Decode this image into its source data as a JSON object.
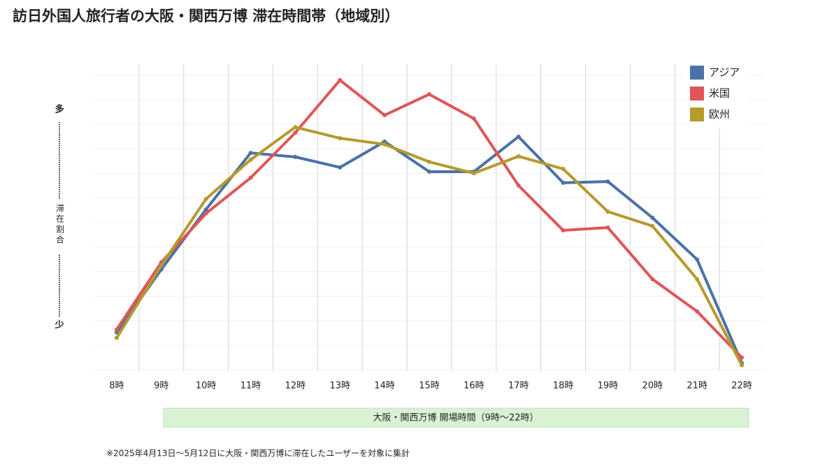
{
  "chart_data": {
    "type": "line",
    "title": "訪日外国人旅行者の大阪・関西万博 滞在時間帯（地域別）",
    "y_label": "滞在割合",
    "y_high_label": "多",
    "y_low_label": "少",
    "categories": [
      "8時",
      "9時",
      "10時",
      "11時",
      "12時",
      "13時",
      "14時",
      "15時",
      "16時",
      "17時",
      "18時",
      "19時",
      "20時",
      "21時",
      "22時"
    ],
    "ylim": [
      0,
      100
    ],
    "series": [
      {
        "name": "アジア",
        "color": "#4a72a6",
        "values": [
          12.7,
          33.2,
          52.7,
          71.1,
          69.8,
          66.4,
          74.8,
          65,
          65,
          76.4,
          61.4,
          61.8,
          50,
          36.4,
          2.7
        ]
      },
      {
        "name": "米国",
        "color": "#e05558",
        "values": [
          13.6,
          35.5,
          51.4,
          63,
          77.7,
          94.8,
          83.4,
          90.2,
          82.3,
          60.5,
          45.9,
          46.8,
          30,
          19.5,
          4.5
        ]
      },
      {
        "name": "欧州",
        "color": "#b59a2c",
        "values": [
          10.9,
          34.5,
          56.1,
          68.9,
          79.5,
          75.9,
          73.9,
          68.2,
          64.5,
          70,
          65.9,
          52,
          47.3,
          30,
          2
        ]
      }
    ],
    "legend_position": "upper right",
    "band_label": "大阪・関西万博 開場時間（9時～22時）",
    "note": "※2025年4月13日～5月12日に大阪・関西万博に滞在したユーザーを対象に集計"
  }
}
